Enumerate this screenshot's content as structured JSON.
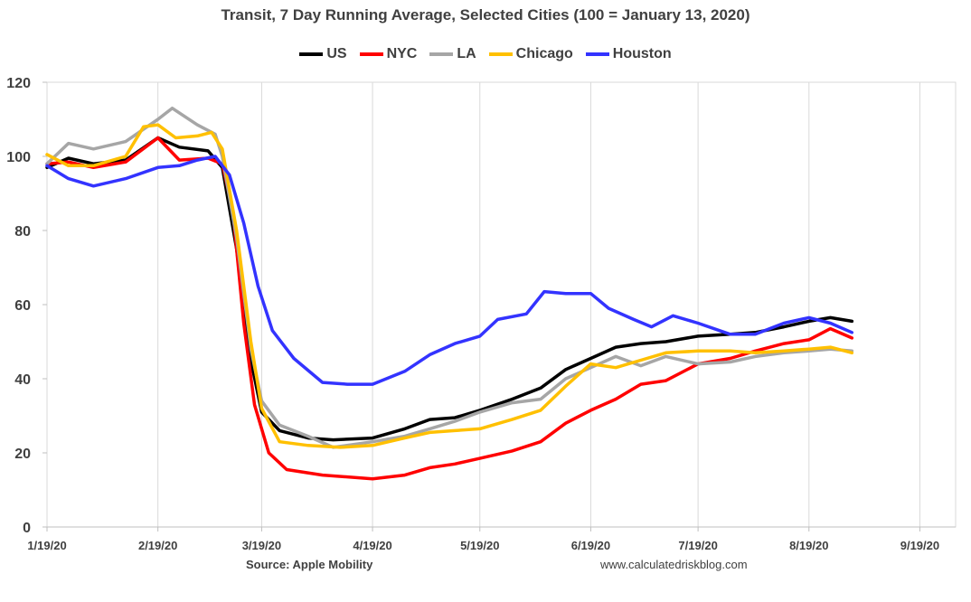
{
  "chart_data": {
    "type": "line",
    "title": "Transit, 7 Day Running Average, Selected Cities (100 = January 13, 2020)",
    "xlabel": "",
    "ylabel": "",
    "xlim": [
      "2020-01-19",
      "2020-09-29"
    ],
    "ylim": [
      0,
      120
    ],
    "yticks": [
      0,
      20,
      40,
      60,
      80,
      100,
      120
    ],
    "xticks": [
      "2020-01-19",
      "2020-02-19",
      "2020-03-19",
      "2020-04-19",
      "2020-05-19",
      "2020-06-19",
      "2020-07-19",
      "2020-08-19",
      "2020-09-19"
    ],
    "xtick_labels": [
      "1/19/20",
      "2/19/20",
      "3/19/20",
      "4/19/20",
      "5/19/20",
      "6/19/20",
      "7/19/20",
      "8/19/20",
      "9/19/20"
    ],
    "grid": "vertical",
    "legend_position": "top",
    "series": [
      {
        "name": "US",
        "color": "#000000",
        "points": [
          [
            "2020-01-19",
            97
          ],
          [
            "2020-01-25",
            99.5
          ],
          [
            "2020-02-01",
            98
          ],
          [
            "2020-02-10",
            99
          ],
          [
            "2020-02-19",
            105
          ],
          [
            "2020-02-25",
            102.5
          ],
          [
            "2020-03-04",
            101.5
          ],
          [
            "2020-03-08",
            97
          ],
          [
            "2020-03-12",
            75
          ],
          [
            "2020-03-16",
            45
          ],
          [
            "2020-03-19",
            31
          ],
          [
            "2020-03-24",
            26
          ],
          [
            "2020-04-01",
            24
          ],
          [
            "2020-04-08",
            23.5
          ],
          [
            "2020-04-19",
            24
          ],
          [
            "2020-04-28",
            26.5
          ],
          [
            "2020-05-05",
            29
          ],
          [
            "2020-05-12",
            29.5
          ],
          [
            "2020-05-19",
            31.5
          ],
          [
            "2020-05-28",
            34.5
          ],
          [
            "2020-06-05",
            37.5
          ],
          [
            "2020-06-12",
            42.5
          ],
          [
            "2020-06-19",
            45.5
          ],
          [
            "2020-06-26",
            48.5
          ],
          [
            "2020-07-03",
            49.5
          ],
          [
            "2020-07-10",
            50
          ],
          [
            "2020-07-19",
            51.5
          ],
          [
            "2020-07-28",
            52
          ],
          [
            "2020-08-04",
            52.5
          ],
          [
            "2020-08-12",
            54
          ],
          [
            "2020-08-19",
            55.5
          ],
          [
            "2020-08-25",
            56.5
          ],
          [
            "2020-08-31",
            55.5
          ]
        ]
      },
      {
        "name": "NYC",
        "color": "#ff0000",
        "points": [
          [
            "2020-01-19",
            98
          ],
          [
            "2020-01-25",
            98.5
          ],
          [
            "2020-02-01",
            97
          ],
          [
            "2020-02-10",
            98.5
          ],
          [
            "2020-02-19",
            105
          ],
          [
            "2020-02-25",
            99
          ],
          [
            "2020-03-04",
            99.5
          ],
          [
            "2020-03-08",
            98
          ],
          [
            "2020-03-11",
            85
          ],
          [
            "2020-03-14",
            55
          ],
          [
            "2020-03-17",
            33
          ],
          [
            "2020-03-21",
            20
          ],
          [
            "2020-03-26",
            15.5
          ],
          [
            "2020-04-05",
            14
          ],
          [
            "2020-04-19",
            13
          ],
          [
            "2020-04-28",
            14
          ],
          [
            "2020-05-05",
            16
          ],
          [
            "2020-05-12",
            17
          ],
          [
            "2020-05-19",
            18.5
          ],
          [
            "2020-05-28",
            20.5
          ],
          [
            "2020-06-05",
            23
          ],
          [
            "2020-06-12",
            28
          ],
          [
            "2020-06-19",
            31.5
          ],
          [
            "2020-06-26",
            34.5
          ],
          [
            "2020-07-03",
            38.5
          ],
          [
            "2020-07-10",
            39.5
          ],
          [
            "2020-07-19",
            44
          ],
          [
            "2020-07-28",
            45.5
          ],
          [
            "2020-08-04",
            47.5
          ],
          [
            "2020-08-12",
            49.5
          ],
          [
            "2020-08-19",
            50.5
          ],
          [
            "2020-08-25",
            53.5
          ],
          [
            "2020-08-31",
            51
          ]
        ]
      },
      {
        "name": "LA",
        "color": "#a6a6a6",
        "points": [
          [
            "2020-01-19",
            98
          ],
          [
            "2020-01-25",
            103.5
          ],
          [
            "2020-02-01",
            102
          ],
          [
            "2020-02-10",
            104
          ],
          [
            "2020-02-19",
            110
          ],
          [
            "2020-02-23",
            113
          ],
          [
            "2020-03-01",
            108.5
          ],
          [
            "2020-03-06",
            106
          ],
          [
            "2020-03-08",
            100
          ],
          [
            "2020-03-12",
            78
          ],
          [
            "2020-03-16",
            48
          ],
          [
            "2020-03-19",
            34
          ],
          [
            "2020-03-24",
            27.5
          ],
          [
            "2020-04-01",
            24.5
          ],
          [
            "2020-04-08",
            21.5
          ],
          [
            "2020-04-19",
            23
          ],
          [
            "2020-04-28",
            24.5
          ],
          [
            "2020-05-05",
            26.5
          ],
          [
            "2020-05-12",
            28.5
          ],
          [
            "2020-05-19",
            31
          ],
          [
            "2020-05-28",
            33.5
          ],
          [
            "2020-06-05",
            34.5
          ],
          [
            "2020-06-12",
            40
          ],
          [
            "2020-06-19",
            43
          ],
          [
            "2020-06-26",
            46
          ],
          [
            "2020-07-03",
            43.5
          ],
          [
            "2020-07-10",
            46
          ],
          [
            "2020-07-19",
            44
          ],
          [
            "2020-07-28",
            44.5
          ],
          [
            "2020-08-04",
            46
          ],
          [
            "2020-08-12",
            47
          ],
          [
            "2020-08-19",
            47.5
          ],
          [
            "2020-08-25",
            48
          ],
          [
            "2020-08-31",
            47.5
          ]
        ]
      },
      {
        "name": "Chicago",
        "color": "#ffc000",
        "points": [
          [
            "2020-01-19",
            100.5
          ],
          [
            "2020-01-25",
            97.5
          ],
          [
            "2020-02-01",
            97.5
          ],
          [
            "2020-02-10",
            100
          ],
          [
            "2020-02-15",
            108
          ],
          [
            "2020-02-19",
            108.5
          ],
          [
            "2020-02-24",
            105
          ],
          [
            "2020-03-01",
            105.5
          ],
          [
            "2020-03-05",
            106.5
          ],
          [
            "2020-03-08",
            102
          ],
          [
            "2020-03-12",
            80
          ],
          [
            "2020-03-16",
            50
          ],
          [
            "2020-03-19",
            32
          ],
          [
            "2020-03-24",
            23
          ],
          [
            "2020-04-01",
            22
          ],
          [
            "2020-04-10",
            21.5
          ],
          [
            "2020-04-19",
            22
          ],
          [
            "2020-04-28",
            24
          ],
          [
            "2020-05-05",
            25.5
          ],
          [
            "2020-05-12",
            26
          ],
          [
            "2020-05-19",
            26.5
          ],
          [
            "2020-05-28",
            29
          ],
          [
            "2020-06-05",
            31.5
          ],
          [
            "2020-06-12",
            38
          ],
          [
            "2020-06-19",
            44
          ],
          [
            "2020-06-26",
            43
          ],
          [
            "2020-07-03",
            45
          ],
          [
            "2020-07-10",
            47
          ],
          [
            "2020-07-19",
            47.5
          ],
          [
            "2020-07-28",
            47.5
          ],
          [
            "2020-08-04",
            47
          ],
          [
            "2020-08-12",
            47.5
          ],
          [
            "2020-08-19",
            48
          ],
          [
            "2020-08-25",
            48.5
          ],
          [
            "2020-08-31",
            47
          ]
        ]
      },
      {
        "name": "Houston",
        "color": "#3333ff",
        "points": [
          [
            "2020-01-19",
            97.5
          ],
          [
            "2020-01-25",
            94
          ],
          [
            "2020-02-01",
            92
          ],
          [
            "2020-02-10",
            94
          ],
          [
            "2020-02-19",
            97
          ],
          [
            "2020-02-25",
            97.5
          ],
          [
            "2020-03-01",
            99
          ],
          [
            "2020-03-06",
            100
          ],
          [
            "2020-03-10",
            95
          ],
          [
            "2020-03-14",
            82
          ],
          [
            "2020-03-18",
            65
          ],
          [
            "2020-03-22",
            53
          ],
          [
            "2020-03-28",
            45.5
          ],
          [
            "2020-04-05",
            39
          ],
          [
            "2020-04-12",
            38.5
          ],
          [
            "2020-04-19",
            38.5
          ],
          [
            "2020-04-28",
            42
          ],
          [
            "2020-05-05",
            46.5
          ],
          [
            "2020-05-12",
            49.5
          ],
          [
            "2020-05-19",
            51.5
          ],
          [
            "2020-05-24",
            56
          ],
          [
            "2020-06-01",
            57.5
          ],
          [
            "2020-06-06",
            63.5
          ],
          [
            "2020-06-12",
            63
          ],
          [
            "2020-06-19",
            63
          ],
          [
            "2020-06-24",
            59
          ],
          [
            "2020-07-01",
            56
          ],
          [
            "2020-07-06",
            54
          ],
          [
            "2020-07-12",
            57
          ],
          [
            "2020-07-19",
            55
          ],
          [
            "2020-07-28",
            52
          ],
          [
            "2020-08-04",
            52
          ],
          [
            "2020-08-12",
            55
          ],
          [
            "2020-08-19",
            56.5
          ],
          [
            "2020-08-25",
            55
          ],
          [
            "2020-08-31",
            52.5
          ]
        ]
      }
    ]
  },
  "footer": {
    "source": "Source: Apple Mobility",
    "site": "www.calculatedriskblog.com"
  }
}
